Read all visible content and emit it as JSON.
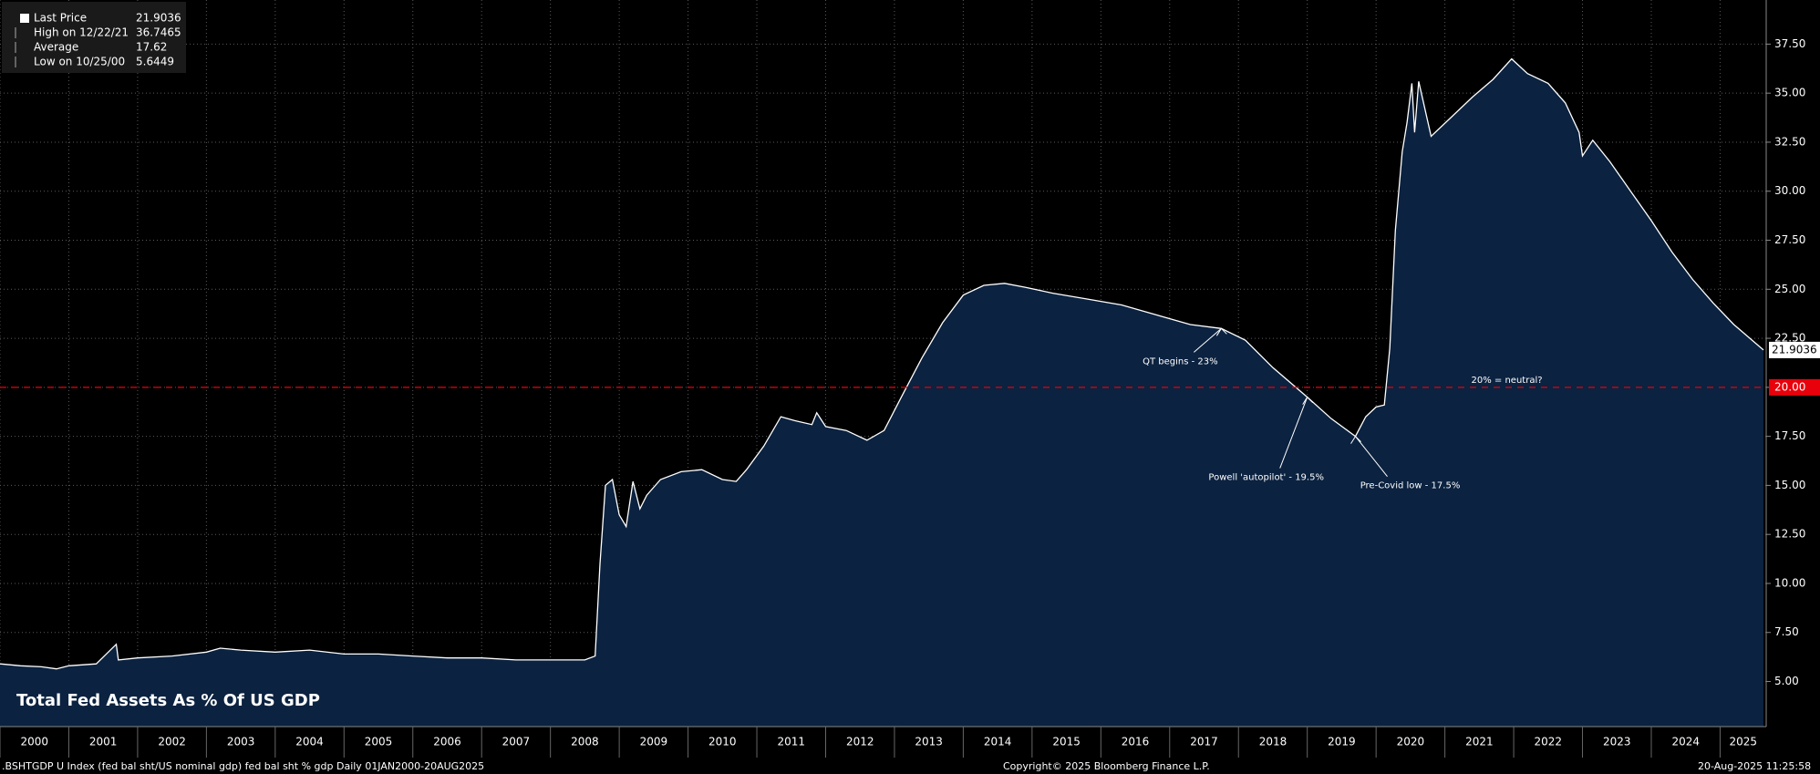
{
  "chart_data": {
    "type": "area",
    "title": "Total Fed Assets As % Of US GDP",
    "legend": [
      {
        "name": "Last Price",
        "value": "21.9036"
      },
      {
        "name": "High on 12/22/21",
        "value": "36.7465"
      },
      {
        "name": "Average",
        "value": "17.62"
      },
      {
        "name": "Low on 10/25/00",
        "value": "5.6449"
      }
    ],
    "x": [
      2000.0,
      2000.3,
      2000.6,
      2000.82,
      2001.0,
      2001.4,
      2001.69,
      2001.72,
      2002.0,
      2002.5,
      2003.0,
      2003.2,
      2003.5,
      2004.0,
      2004.5,
      2005.0,
      2005.5,
      2006.0,
      2006.5,
      2007.0,
      2007.5,
      2008.0,
      2008.5,
      2008.65,
      2008.72,
      2008.8,
      2008.9,
      2009.0,
      2009.1,
      2009.2,
      2009.3,
      2009.4,
      2009.6,
      2009.9,
      2010.2,
      2010.5,
      2010.7,
      2010.85,
      2011.1,
      2011.35,
      2011.55,
      2011.8,
      2011.87,
      2012.0,
      2012.3,
      2012.6,
      2012.85,
      2013.1,
      2013.4,
      2013.7,
      2014.0,
      2014.3,
      2014.6,
      2014.9,
      2015.3,
      2015.8,
      2016.3,
      2016.8,
      2017.3,
      2017.75,
      2018.1,
      2018.5,
      2019.0,
      2019.35,
      2019.7,
      2019.85,
      2020.0,
      2020.12,
      2020.2,
      2020.28,
      2020.38,
      2020.45,
      2020.52,
      2020.56,
      2020.62,
      2020.8,
      2021.1,
      2021.4,
      2021.7,
      2021.97,
      2022.2,
      2022.5,
      2022.75,
      2022.95,
      2023.0,
      2023.15,
      2023.4,
      2023.7,
      2024.0,
      2024.3,
      2024.6,
      2024.9,
      2025.2,
      2025.63
    ],
    "series": [
      {
        "name": "Last Price",
        "color": "#ffffff",
        "fill": "#0b2240",
        "values": [
          5.9,
          5.8,
          5.75,
          5.6449,
          5.8,
          5.9,
          6.9,
          6.1,
          6.2,
          6.3,
          6.5,
          6.7,
          6.6,
          6.5,
          6.6,
          6.4,
          6.4,
          6.3,
          6.2,
          6.2,
          6.1,
          6.1,
          6.1,
          6.3,
          11.0,
          15.0,
          15.3,
          13.5,
          12.9,
          15.2,
          13.8,
          14.5,
          15.3,
          15.7,
          15.8,
          15.3,
          15.2,
          15.8,
          17.0,
          18.5,
          18.3,
          18.1,
          18.7,
          18.0,
          17.8,
          17.3,
          17.8,
          19.5,
          21.5,
          23.3,
          24.7,
          25.2,
          25.3,
          25.1,
          24.8,
          24.5,
          24.2,
          23.7,
          23.2,
          23.0,
          22.4,
          21.0,
          19.5,
          18.4,
          17.5,
          18.5,
          19.0,
          19.1,
          22.0,
          28.0,
          32.0,
          33.5,
          35.5,
          33.0,
          35.6,
          32.8,
          33.8,
          34.8,
          35.7,
          36.7465,
          36.0,
          35.5,
          34.5,
          33.0,
          31.8,
          32.6,
          31.5,
          30.0,
          28.5,
          26.9,
          25.5,
          24.3,
          23.2,
          21.9036
        ]
      }
    ],
    "xlim": [
      2000.0,
      2025.67
    ],
    "xticks": [
      2000,
      2001,
      2002,
      2003,
      2004,
      2005,
      2006,
      2007,
      2008,
      2009,
      2010,
      2011,
      2012,
      2013,
      2014,
      2015,
      2016,
      2017,
      2018,
      2019,
      2020,
      2021,
      2022,
      2023,
      2024,
      2025
    ],
    "ylim": [
      2.7,
      39.75
    ],
    "yticks": [
      {
        "value": 5,
        "label": "5.00"
      },
      {
        "value": 7.5,
        "label": "7.50"
      },
      {
        "value": 10,
        "label": "10.00"
      },
      {
        "value": 12.5,
        "label": "12.50"
      },
      {
        "value": 15,
        "label": "15.00"
      },
      {
        "value": 17.5,
        "label": "17.50"
      },
      {
        "value": 20,
        "label": "20.00"
      },
      {
        "value": 22.5,
        "label": "22.50"
      },
      {
        "value": 25,
        "label": "25.00"
      },
      {
        "value": 27.5,
        "label": "27.50"
      },
      {
        "value": 30,
        "label": "30.00"
      },
      {
        "value": 32.5,
        "label": "32.50"
      },
      {
        "value": 35,
        "label": "35.00"
      },
      {
        "value": 37.5,
        "label": "37.50"
      }
    ],
    "grid": true,
    "hline": {
      "value": 20,
      "label": "20.00",
      "color": "#e8000b"
    },
    "annotations": [
      {
        "text": "QT begins - 23%",
        "x": 2017.75,
        "y": 23
      },
      {
        "text": "Powell 'autopilot' - 19.5%",
        "x": 2019.0,
        "y": 19.5
      },
      {
        "text": "Pre-Covid low - 17.5%",
        "x": 2019.7,
        "y": 17.5
      },
      {
        "text": "20% = neutral?",
        "x": 2021.9,
        "y": 20
      }
    ],
    "source": ".BSHTGDP U Index (fed bal sht/US nominal gdp) fed bal sht % gdp  Daily 01JAN2000-20AUG2025",
    "copyright": "Copyright© 2025 Bloomberg Finance L.P.",
    "timestamp": "20-Aug-2025 11:25:58"
  }
}
